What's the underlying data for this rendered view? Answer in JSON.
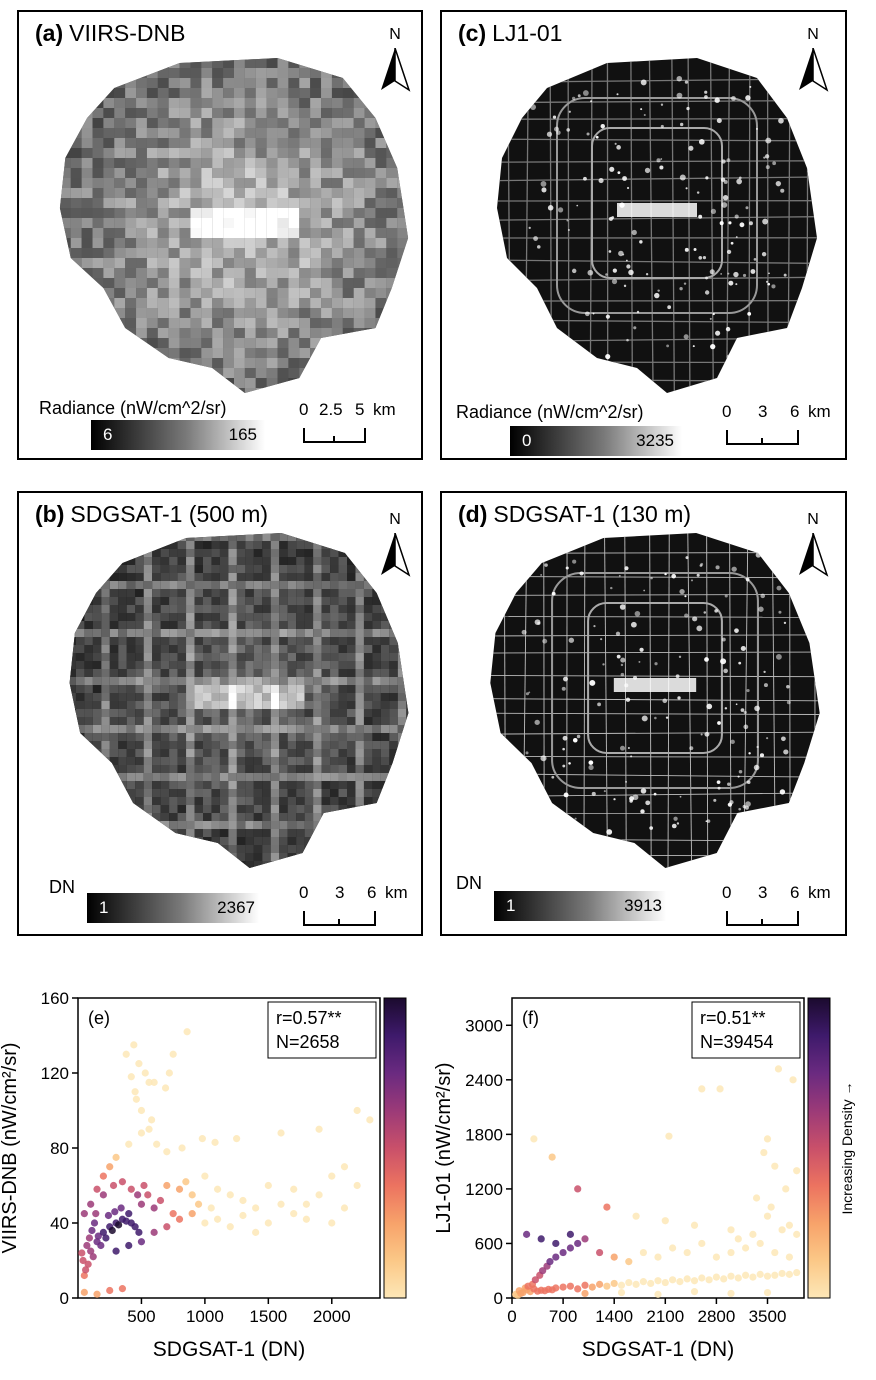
{
  "panels": [
    {
      "id": "a",
      "label": "(a)",
      "title": "VIIRS-DNB",
      "legend_title": "Radiance (nW/cm^2/sr)",
      "ramp_min": "6",
      "ramp_max": "165",
      "scale_labels": [
        "0",
        "2.5",
        "5",
        "km"
      ],
      "north": "N",
      "style": "coarse"
    },
    {
      "id": "c",
      "label": "(c)",
      "title": "LJ1-01",
      "legend_title": "Radiance (nW/cm^2/sr)",
      "ramp_min": "0",
      "ramp_max": "3235",
      "scale_labels": [
        "0",
        "3",
        "6",
        "km"
      ],
      "north": "N",
      "style": "roads"
    },
    {
      "id": "b",
      "label": "(b)",
      "title": "SDGSAT-1 (500 m)",
      "legend_title": "DN",
      "ramp_min": "1",
      "ramp_max": "2367",
      "scale_labels": [
        "0",
        "3",
        "6",
        "km"
      ],
      "north": "N",
      "style": "grid"
    },
    {
      "id": "d",
      "label": "(d)",
      "title": "SDGSAT-1 (130 m)",
      "legend_title": "DN",
      "ramp_min": "1",
      "ramp_max": "3913",
      "scale_labels": [
        "0",
        "3",
        "6",
        "km"
      ],
      "north": "N",
      "style": "roads"
    }
  ],
  "colorbar_label": "Increasing Density →",
  "chart_data": [
    {
      "type": "scatter",
      "panel": "(e)",
      "xlabel": "SDGSAT-1 (DN)",
      "ylabel": "VIIRS-DNB (nW/cm²/sr)",
      "xlim": [
        0,
        2380
      ],
      "ylim": [
        0,
        160
      ],
      "xticks": [
        500,
        1000,
        1500,
        2000
      ],
      "yticks": [
        0,
        40,
        80,
        120,
        160
      ],
      "annotation": [
        "r=0.57**",
        "N=2658"
      ],
      "points": [
        [
          150,
          30
        ],
        [
          200,
          35
        ],
        [
          250,
          38
        ],
        [
          300,
          40
        ],
        [
          350,
          42
        ],
        [
          180,
          28
        ],
        [
          220,
          32
        ],
        [
          270,
          36
        ],
        [
          320,
          39
        ],
        [
          380,
          41
        ],
        [
          120,
          22
        ],
        [
          100,
          25
        ],
        [
          160,
          33
        ],
        [
          240,
          44
        ],
        [
          290,
          46
        ],
        [
          340,
          48
        ],
        [
          400,
          45
        ],
        [
          420,
          40
        ],
        [
          450,
          38
        ],
        [
          480,
          35
        ],
        [
          80,
          18
        ],
        [
          60,
          15
        ],
        [
          50,
          12
        ],
        [
          40,
          20
        ],
        [
          30,
          24
        ],
        [
          70,
          28
        ],
        [
          90,
          32
        ],
        [
          110,
          36
        ],
        [
          130,
          40
        ],
        [
          140,
          45
        ],
        [
          500,
          50
        ],
        [
          550,
          55
        ],
        [
          600,
          48
        ],
        [
          650,
          52
        ],
        [
          700,
          60
        ],
        [
          750,
          45
        ],
        [
          800,
          58
        ],
        [
          850,
          62
        ],
        [
          900,
          55
        ],
        [
          950,
          50
        ],
        [
          1000,
          65
        ],
        [
          1050,
          48
        ],
        [
          1100,
          58
        ],
        [
          1200,
          55
        ],
        [
          1300,
          52
        ],
        [
          1400,
          48
        ],
        [
          1500,
          60
        ],
        [
          1600,
          50
        ],
        [
          1700,
          58
        ],
        [
          1800,
          42
        ],
        [
          1900,
          55
        ],
        [
          2000,
          65
        ],
        [
          2100,
          70
        ],
        [
          2200,
          60
        ],
        [
          2300,
          95
        ],
        [
          2200,
          100
        ],
        [
          1900,
          90
        ],
        [
          1600,
          88
        ],
        [
          1250,
          85
        ],
        [
          1080,
          83
        ],
        [
          980,
          85
        ],
        [
          820,
          80
        ],
        [
          700,
          78
        ],
        [
          620,
          82
        ],
        [
          560,
          90
        ],
        [
          500,
          100
        ],
        [
          450,
          110
        ],
        [
          420,
          118
        ],
        [
          530,
          120
        ],
        [
          480,
          125
        ],
        [
          380,
          130
        ],
        [
          440,
          135
        ],
        [
          600,
          115
        ],
        [
          720,
          120
        ],
        [
          580,
          95
        ],
        [
          500,
          88
        ],
        [
          400,
          82
        ],
        [
          300,
          75
        ],
        [
          250,
          70
        ],
        [
          200,
          65
        ],
        [
          150,
          58
        ],
        [
          100,
          50
        ],
        [
          50,
          45
        ],
        [
          300,
          25
        ],
        [
          400,
          28
        ],
        [
          500,
          30
        ],
        [
          600,
          35
        ],
        [
          700,
          38
        ],
        [
          800,
          42
        ],
        [
          900,
          45
        ],
        [
          1000,
          40
        ],
        [
          1100,
          42
        ],
        [
          1200,
          38
        ],
        [
          1300,
          44
        ],
        [
          1400,
          35
        ],
        [
          1500,
          40
        ],
        [
          1700,
          45
        ],
        [
          1800,
          50
        ],
        [
          2000,
          40
        ],
        [
          2100,
          48
        ],
        [
          50,
          3
        ],
        [
          150,
          2
        ],
        [
          250,
          4
        ],
        [
          350,
          5
        ],
        [
          200,
          55
        ],
        [
          280,
          60
        ],
        [
          350,
          62
        ],
        [
          420,
          58
        ],
        [
          470,
          55
        ],
        [
          520,
          60
        ],
        [
          860,
          142
        ],
        [
          750,
          130
        ],
        [
          690,
          112
        ],
        [
          560,
          115
        ],
        [
          460,
          106
        ]
      ]
    },
    {
      "type": "scatter",
      "panel": "(f)",
      "xlabel": "SDGSAT-1 (DN)",
      "ylabel": "LJ1-01 (nW/cm²/sr)",
      "xlim": [
        0,
        4000
      ],
      "ylim": [
        0,
        3300
      ],
      "xticks": [
        0,
        700,
        1400,
        2100,
        2800,
        3500
      ],
      "yticks": [
        0,
        600,
        1200,
        1800,
        2400,
        3000
      ],
      "annotation": [
        "r=0.51**",
        "N=39454"
      ],
      "points": [
        [
          100,
          80
        ],
        [
          200,
          90
        ],
        [
          300,
          100
        ],
        [
          400,
          85
        ],
        [
          500,
          95
        ],
        [
          150,
          60
        ],
        [
          250,
          70
        ],
        [
          350,
          75
        ],
        [
          450,
          80
        ],
        [
          550,
          90
        ],
        [
          600,
          110
        ],
        [
          700,
          120
        ],
        [
          800,
          130
        ],
        [
          900,
          100
        ],
        [
          1000,
          140
        ],
        [
          1100,
          120
        ],
        [
          1200,
          150
        ],
        [
          1300,
          130
        ],
        [
          1400,
          160
        ],
        [
          1500,
          140
        ],
        [
          1600,
          170
        ],
        [
          1700,
          150
        ],
        [
          1800,
          180
        ],
        [
          1900,
          160
        ],
        [
          2000,
          190
        ],
        [
          2100,
          170
        ],
        [
          2200,
          200
        ],
        [
          2300,
          180
        ],
        [
          2400,
          210
        ],
        [
          2500,
          190
        ],
        [
          2600,
          220
        ],
        [
          2700,
          200
        ],
        [
          2800,
          230
        ],
        [
          2900,
          210
        ],
        [
          3000,
          240
        ],
        [
          3100,
          220
        ],
        [
          3200,
          250
        ],
        [
          3300,
          230
        ],
        [
          3400,
          260
        ],
        [
          3500,
          240
        ],
        [
          3600,
          250
        ],
        [
          3700,
          270
        ],
        [
          3800,
          260
        ],
        [
          3900,
          280
        ],
        [
          50,
          40
        ],
        [
          80,
          30
        ],
        [
          120,
          50
        ],
        [
          180,
          110
        ],
        [
          220,
          130
        ],
        [
          280,
          150
        ],
        [
          320,
          200
        ],
        [
          380,
          250
        ],
        [
          420,
          300
        ],
        [
          480,
          350
        ],
        [
          520,
          400
        ],
        [
          600,
          450
        ],
        [
          700,
          500
        ],
        [
          800,
          550
        ],
        [
          900,
          600
        ],
        [
          1000,
          650
        ],
        [
          200,
          700
        ],
        [
          400,
          650
        ],
        [
          600,
          600
        ],
        [
          800,
          700
        ],
        [
          1200,
          500
        ],
        [
          1400,
          450
        ],
        [
          1600,
          400
        ],
        [
          1800,
          500
        ],
        [
          2000,
          450
        ],
        [
          2200,
          550
        ],
        [
          2400,
          500
        ],
        [
          2600,
          600
        ],
        [
          2800,
          450
        ],
        [
          3000,
          500
        ],
        [
          3200,
          550
        ],
        [
          3400,
          600
        ],
        [
          3600,
          500
        ],
        [
          3800,
          450
        ],
        [
          3900,
          700
        ],
        [
          3700,
          750
        ],
        [
          3500,
          900
        ],
        [
          3450,
          1600
        ],
        [
          3500,
          1750
        ],
        [
          3600,
          1450
        ],
        [
          3900,
          1400
        ],
        [
          3800,
          800
        ],
        [
          2600,
          2300
        ],
        [
          2850,
          2300
        ],
        [
          3350,
          1100
        ],
        [
          2150,
          1780
        ],
        [
          300,
          1750
        ],
        [
          550,
          1550
        ],
        [
          900,
          1200
        ],
        [
          1300,
          1000
        ],
        [
          1700,
          900
        ],
        [
          2100,
          850
        ],
        [
          2500,
          800
        ],
        [
          3000,
          750
        ],
        [
          1000,
          50
        ],
        [
          1500,
          60
        ],
        [
          2000,
          40
        ],
        [
          2500,
          70
        ],
        [
          3000,
          50
        ],
        [
          3500,
          60
        ],
        [
          3650,
          2520
        ],
        [
          3850,
          2400
        ],
        [
          3750,
          1200
        ],
        [
          3550,
          1000
        ],
        [
          3300,
          700
        ],
        [
          3100,
          650
        ]
      ]
    }
  ]
}
